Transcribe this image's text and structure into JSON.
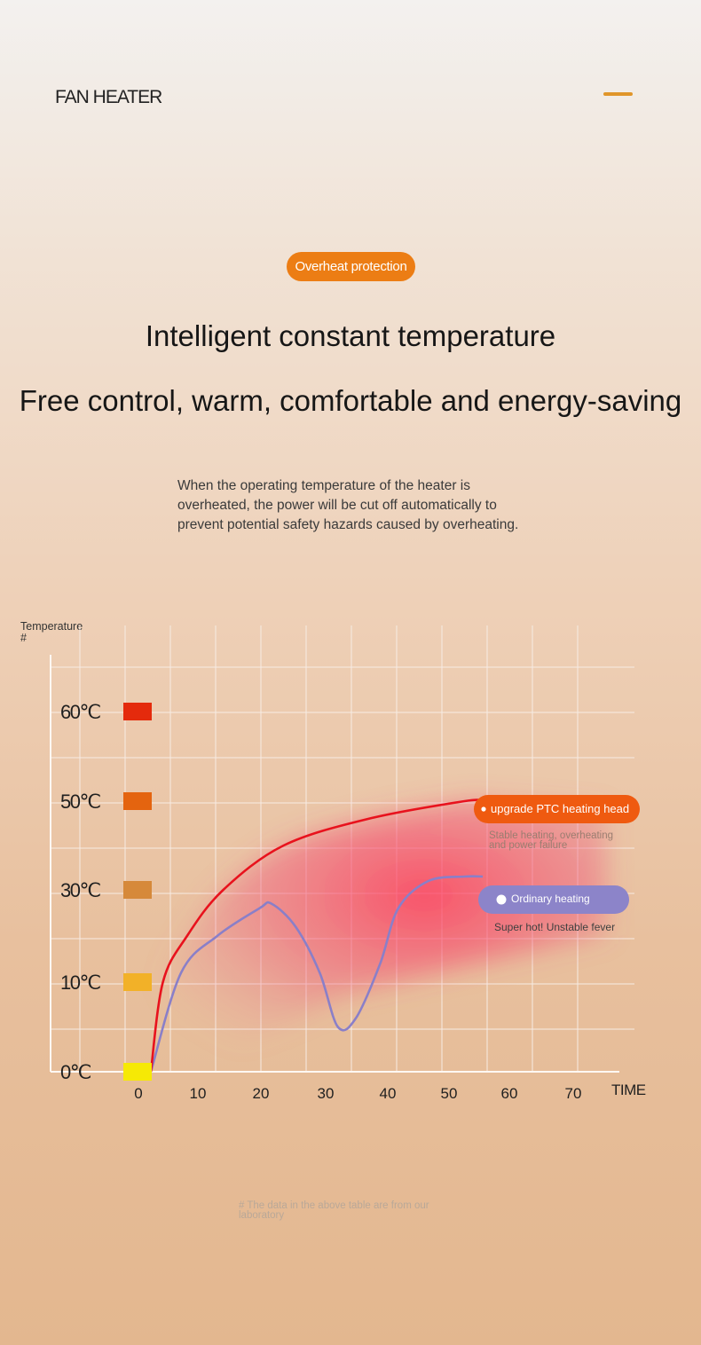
{
  "header": {
    "brand": "FAN HEATER"
  },
  "badge": {
    "label": "Overheat protection"
  },
  "headline": "Intelligent constant temperature",
  "subheadline": "Free control, warm, comfortable and energy-saving",
  "description": "When the operating temperature of the heater is overheated, the power will be cut off automatically to prevent potential safety hazards caused by overheating.",
  "footnote": "# The data in the above table are from our laboratory",
  "colors": {
    "accent": "#ec7d14",
    "ptc_line": "#e8121d",
    "ptc_pill": "#ef5a10",
    "ordinary_line": "#8a7fc8",
    "ordinary_pill": "#8c84c9"
  },
  "chart_data": {
    "type": "line",
    "ylabel": "Temperature #",
    "xlabel": "TIME",
    "x_ticks": [
      "0",
      "10",
      "20",
      "30",
      "40",
      "50",
      "60",
      "70"
    ],
    "y_ticks": [
      {
        "label": "60℃",
        "value": 60,
        "color": "#e42a0c"
      },
      {
        "label": "50℃",
        "value": 50,
        "color": "#e4640f"
      },
      {
        "label": "30℃",
        "value": 30,
        "color": "#d6893a"
      },
      {
        "label": "10℃",
        "value": 10,
        "color": "#f2b128"
      },
      {
        "label": "0℃",
        "value": 0,
        "color": "#f6e905"
      }
    ],
    "grid": true,
    "series": [
      {
        "name": "upgrade PTC heating head",
        "note": "Stable heating, overheating and power failure",
        "color": "#e8121d",
        "points": [
          [
            0,
            0
          ],
          [
            2,
            10
          ],
          [
            6,
            20
          ],
          [
            12,
            30
          ],
          [
            22,
            40
          ],
          [
            36,
            46
          ],
          [
            52,
            50
          ],
          [
            55,
            50
          ]
        ]
      },
      {
        "name": "Ordinary heating",
        "note": "Super hot! Unstable fever",
        "color": "#8a7fc8",
        "points": [
          [
            0,
            0
          ],
          [
            5,
            12
          ],
          [
            11,
            20
          ],
          [
            18,
            26
          ],
          [
            20,
            27
          ],
          [
            24,
            22
          ],
          [
            28,
            12
          ],
          [
            31,
            5
          ],
          [
            34,
            6
          ],
          [
            38,
            14
          ],
          [
            41,
            26
          ],
          [
            46,
            32
          ],
          [
            52,
            33
          ],
          [
            55,
            33
          ]
        ]
      }
    ]
  }
}
